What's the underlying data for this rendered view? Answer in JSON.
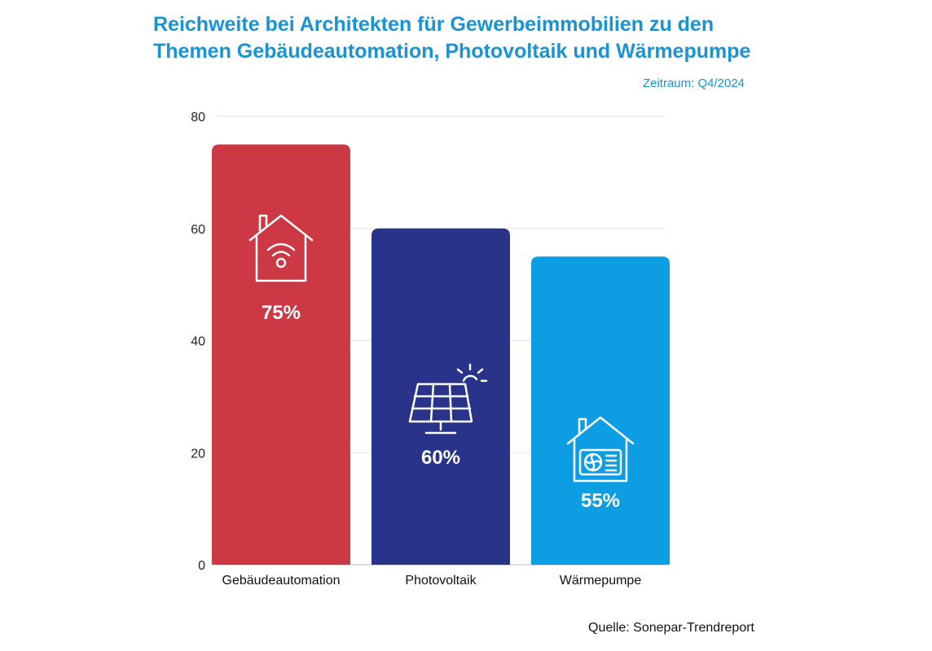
{
  "chart_data": {
    "type": "bar",
    "title": "Reichweite bei Architekten für Gewerbeimmobilien zu den Themen Gebäudeautomation, Photovoltaik und Wärmepumpe",
    "title_lines": [
      "Reichweite bei Architekten für Gewerbeimmobilien zu den",
      "Themen Gebäudeautomation, Photovoltaik und Wärmepumpe"
    ],
    "subtitle": "Zeitraum: Q4/2024",
    "source": "Quelle: Sonepar-Trendreport",
    "categories": [
      "Gebäudeautomation",
      "Photovoltaik",
      "Wärmepumpe"
    ],
    "values": [
      75,
      60,
      55
    ],
    "data_labels": [
      "75%",
      "60%",
      "55%"
    ],
    "colors": [
      "#cc3844",
      "#283389",
      "#0d9de2"
    ],
    "icons": [
      "smart-home-wifi-icon",
      "solar-panel-sun-icon",
      "heat-pump-house-icon"
    ],
    "ylim": [
      0,
      80
    ],
    "yticks": [
      0,
      20,
      40,
      60,
      80
    ],
    "grid": true,
    "legend": "none"
  }
}
